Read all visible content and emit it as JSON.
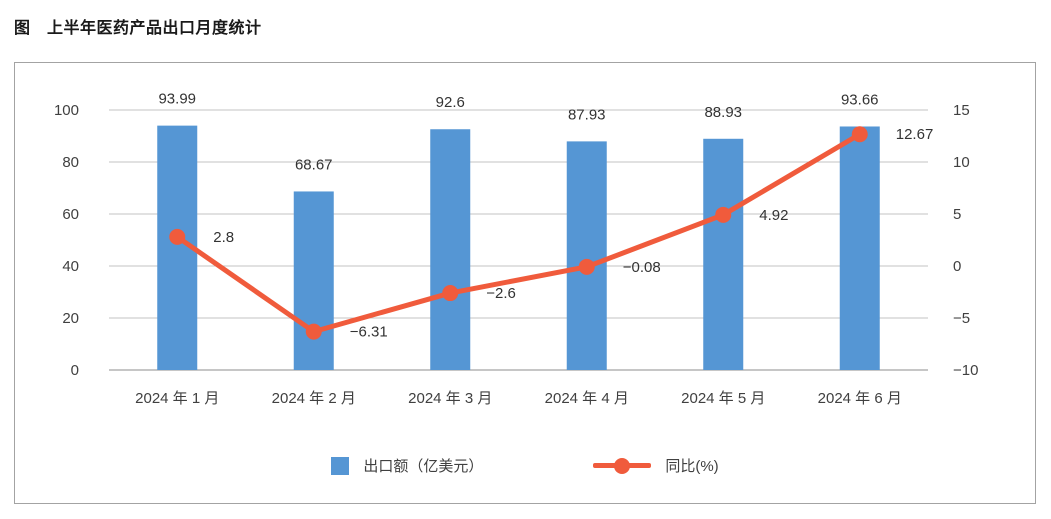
{
  "title": "图　上半年医药产品出口月度统计",
  "chart_data": {
    "type": "bar+line",
    "title": "图　上半年医药产品出口月度统计",
    "categories": [
      "2024 年 1 月",
      "2024 年 2 月",
      "2024 年 3 月",
      "2024 年 4 月",
      "2024 年 5 月",
      "2024 年 6 月"
    ],
    "series": [
      {
        "name": "出口额（亿美元）",
        "type": "bar",
        "axis": "left",
        "values": [
          93.99,
          68.67,
          92.6,
          87.93,
          88.93,
          93.66
        ],
        "labels": [
          "93.99",
          "68.67",
          "92.6",
          "87.93",
          "88.93",
          "93.66"
        ]
      },
      {
        "name": "同比(%)",
        "type": "line",
        "axis": "right",
        "values": [
          2.8,
          -6.31,
          -2.6,
          -0.08,
          4.92,
          12.67
        ],
        "labels": [
          "2.8",
          "−6.31",
          "−2.6",
          "−0.08",
          "4.92",
          "12.67"
        ]
      }
    ],
    "left_axis": {
      "min": 0,
      "max": 100,
      "step": 20,
      "ticks": [
        0,
        20,
        40,
        60,
        80,
        100
      ],
      "tick_labels": [
        "0",
        "20",
        "40",
        "60",
        "80",
        "100"
      ]
    },
    "right_axis": {
      "min": -10,
      "max": 15,
      "step": 5,
      "ticks": [
        -10,
        -5,
        0,
        5,
        10,
        15
      ],
      "tick_labels": [
        "−10",
        "−5",
        "0",
        "5",
        "10",
        "15"
      ]
    },
    "grid": "horizontal",
    "legend_position": "bottom",
    "xlabel": "",
    "ylabel": ""
  },
  "legend": {
    "items": [
      {
        "label": "出口额（亿美元）",
        "swatch": "bar-square"
      },
      {
        "label": "同比(%)",
        "swatch": "line-dot"
      }
    ]
  },
  "colors": {
    "bar": "#5596D4",
    "line": "#F05B3C",
    "grid": "#C3C3C3",
    "zero_line": "#8C8C8C",
    "axis_text": "#404040",
    "data_label": "#333333",
    "border": "#A3A3A3"
  }
}
